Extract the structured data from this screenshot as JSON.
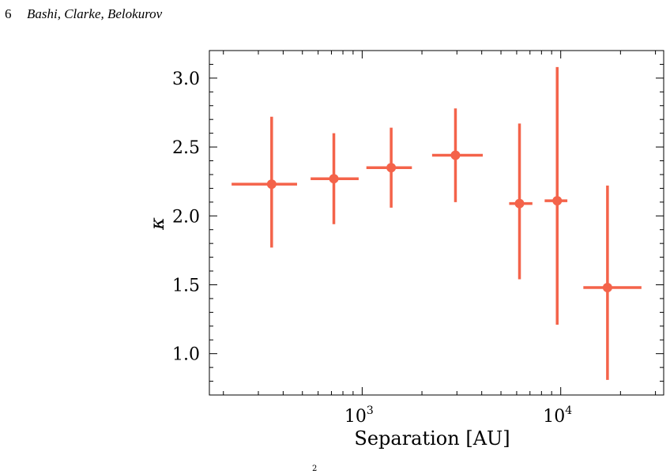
{
  "header": {
    "page_number": "6",
    "authors": "Bashi, Clarke, Belokurov"
  },
  "chart_data": {
    "type": "scatter",
    "title": "",
    "xlabel": "Separation [AU]",
    "ylabel": "κ",
    "x_scale": "log",
    "xlim": [
      170,
      33000
    ],
    "ylim": [
      0.7,
      3.2
    ],
    "x_ticks": [
      {
        "value": 1000,
        "base": "10",
        "exp": "3"
      },
      {
        "value": 10000,
        "base": "10",
        "exp": "4"
      }
    ],
    "y_ticks": [
      {
        "value": 1.0,
        "label": "1.0"
      },
      {
        "value": 1.5,
        "label": "1.5"
      },
      {
        "value": 2.0,
        "label": "2.0"
      },
      {
        "value": 2.5,
        "label": "2.5"
      },
      {
        "value": 3.0,
        "label": "3.0"
      }
    ],
    "grid": false,
    "color": "#f4634a",
    "points": [
      {
        "x": 350,
        "y": 2.23,
        "x_low": 220,
        "x_high": 470,
        "y_low": 1.77,
        "y_high": 2.72
      },
      {
        "x": 720,
        "y": 2.27,
        "x_low": 550,
        "x_high": 960,
        "y_low": 1.94,
        "y_high": 2.6
      },
      {
        "x": 1400,
        "y": 2.35,
        "x_low": 1050,
        "x_high": 1780,
        "y_low": 2.06,
        "y_high": 2.64
      },
      {
        "x": 2950,
        "y": 2.44,
        "x_low": 2250,
        "x_high": 4050,
        "y_low": 2.1,
        "y_high": 2.78
      },
      {
        "x": 6200,
        "y": 2.09,
        "x_low": 5500,
        "x_high": 7200,
        "y_low": 1.54,
        "y_high": 2.67
      },
      {
        "x": 9600,
        "y": 2.11,
        "x_low": 8300,
        "x_high": 10800,
        "y_low": 1.21,
        "y_high": 3.08
      },
      {
        "x": 17200,
        "y": 1.48,
        "x_low": 13000,
        "x_high": 25500,
        "y_low": 0.81,
        "y_high": 2.22
      }
    ]
  },
  "footer": {
    "fragment": "2"
  }
}
